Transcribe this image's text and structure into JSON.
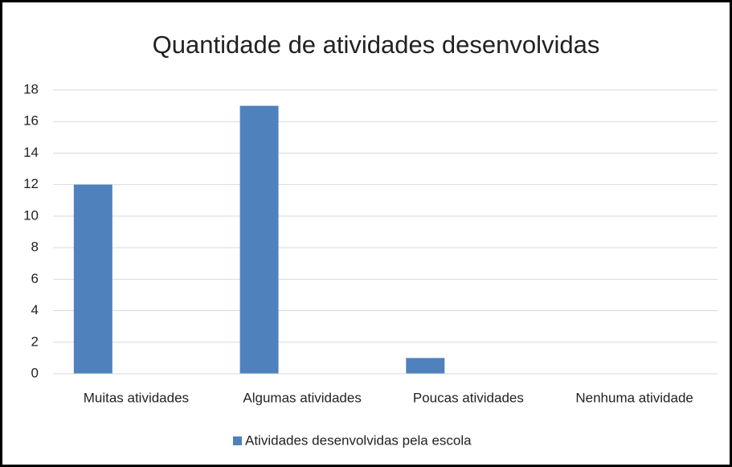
{
  "chart_data": {
    "type": "bar",
    "title": "Quantidade de atividades desenvolvidas",
    "categories": [
      "Muitas atividades",
      "Algumas atividades",
      "Poucas atividades",
      "Nenhuma atividade"
    ],
    "series": [
      {
        "name": "Atividades desenvolvidas pela escola",
        "color": "#4f81bd",
        "values": [
          12,
          17,
          1,
          0
        ]
      }
    ],
    "ylim": [
      0,
      18
    ],
    "yticks": [
      0,
      2,
      4,
      6,
      8,
      10,
      12,
      14,
      16,
      18
    ],
    "grid": true,
    "legend": "bottom"
  }
}
